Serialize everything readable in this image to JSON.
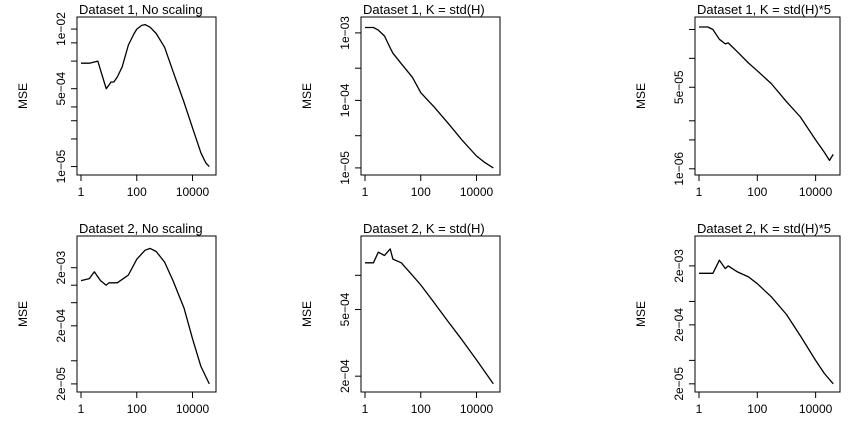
{
  "chart_data": [
    {
      "type": "line",
      "title": "Dataset 1,  No scaling",
      "ylabel": "MSE",
      "x_scale": "log",
      "y_scale": "log",
      "xlim": [
        1,
        50000
      ],
      "ylim": [
        8e-06,
        0.015
      ],
      "x_ticks": [
        {
          "v": 1,
          "label": "1"
        },
        {
          "v": 100,
          "label": "100"
        },
        {
          "v": 10000,
          "label": "10000"
        }
      ],
      "y_ticks": [
        {
          "v": 1e-05,
          "label": "1e−05"
        },
        {
          "v": 0.0005,
          "label": "5e−04"
        },
        {
          "v": 0.01,
          "label": "1e−02"
        }
      ],
      "y_minor_ticks": [
        4e-05,
        0.0001,
        0.0002,
        0.002,
        0.005
      ],
      "series": [
        {
          "x": [
            1,
            2,
            4,
            8,
            10,
            12,
            15,
            20,
            30,
            50,
            80,
            100,
            150,
            200,
            300,
            500,
            1000,
            2000,
            5000,
            10000,
            20000,
            30000,
            40000
          ],
          "y": [
            0.0018,
            0.0018,
            0.002,
            0.0005,
            0.0006,
            0.0007,
            0.0007,
            0.0009,
            0.0015,
            0.0045,
            0.008,
            0.01,
            0.012,
            0.0125,
            0.011,
            0.008,
            0.004,
            0.0012,
            0.00025,
            7e-05,
            2e-05,
            1.2e-05,
            1e-05
          ]
        }
      ]
    },
    {
      "type": "line",
      "title": "Dataset 1,  K = std(H)",
      "ylabel": "MSE",
      "x_scale": "log",
      "y_scale": "log",
      "xlim": [
        1,
        50000
      ],
      "ylim": [
        9e-06,
        0.0015
      ],
      "x_ticks": [
        {
          "v": 1,
          "label": "1"
        },
        {
          "v": 100,
          "label": "100"
        },
        {
          "v": 10000,
          "label": "10000"
        }
      ],
      "y_ticks": [
        {
          "v": 1e-05,
          "label": "1e−05"
        },
        {
          "v": 0.0001,
          "label": "1e−04"
        },
        {
          "v": 0.001,
          "label": "1e−03"
        }
      ],
      "y_minor_ticks": [
        3e-05,
        0.0003
      ],
      "series": [
        {
          "x": [
            1,
            2,
            3,
            5,
            8,
            10,
            20,
            50,
            100,
            300,
            1000,
            3000,
            10000,
            20000,
            40000
          ],
          "y": [
            0.0012,
            0.0012,
            0.0011,
            0.0009,
            0.0006,
            0.0005,
            0.00035,
            0.00022,
            0.00013,
            8e-05,
            4.5e-05,
            2.6e-05,
            1.5e-05,
            1.2e-05,
            1e-05
          ]
        }
      ]
    },
    {
      "type": "line",
      "title": "Dataset 1,  K = std(H)*5",
      "ylabel": "MSE",
      "x_scale": "log",
      "y_scale": "log",
      "xlim": [
        1,
        50000
      ],
      "ylim": [
        9e-07,
        0.0012
      ],
      "x_ticks": [
        {
          "v": 1,
          "label": "1"
        },
        {
          "v": 100,
          "label": "100"
        },
        {
          "v": 10000,
          "label": "10000"
        }
      ],
      "y_ticks": [
        {
          "v": 1e-06,
          "label": "1e−06"
        },
        {
          "v": 5e-05,
          "label": "5e−05"
        }
      ],
      "y_minor_ticks": [
        4e-06,
        1e-05,
        0.0002,
        0.0008
      ],
      "series": [
        {
          "x": [
            1,
            2,
            3,
            5,
            8,
            10,
            20,
            50,
            100,
            300,
            1000,
            3000,
            10000,
            20000,
            30000,
            40000
          ],
          "y": [
            0.0009,
            0.0009,
            0.0008,
            0.0005,
            0.0004,
            0.00042,
            0.00028,
            0.00016,
            0.00011,
            6e-05,
            2.5e-05,
            1.2e-05,
            4e-06,
            2.2e-06,
            1.5e-06,
            2e-06
          ]
        }
      ]
    },
    {
      "type": "line",
      "title": "Dataset 2,  No scaling",
      "ylabel": "MSE",
      "x_scale": "log",
      "y_scale": "log",
      "xlim": [
        1,
        50000
      ],
      "ylim": [
        1.7e-05,
        0.006
      ],
      "x_ticks": [
        {
          "v": 1,
          "label": "1"
        },
        {
          "v": 100,
          "label": "100"
        },
        {
          "v": 10000,
          "label": "10000"
        }
      ],
      "y_ticks": [
        {
          "v": 2e-05,
          "label": "2e−05"
        },
        {
          "v": 0.0002,
          "label": "2e−04"
        },
        {
          "v": 0.002,
          "label": "2e−03"
        }
      ],
      "y_minor_ticks": [
        5e-05,
        0.0005,
        0.001
      ],
      "series": [
        {
          "x": [
            1,
            2,
            3,
            5,
            8,
            10,
            20,
            50,
            100,
            200,
            300,
            500,
            1000,
            2000,
            5000,
            10000,
            20000,
            40000
          ],
          "y": [
            0.0012,
            0.0013,
            0.0017,
            0.0012,
            0.001,
            0.0011,
            0.0011,
            0.0015,
            0.0028,
            0.004,
            0.0043,
            0.0038,
            0.0025,
            0.0012,
            0.0004,
            0.00012,
            4e-05,
            2e-05
          ]
        }
      ]
    },
    {
      "type": "line",
      "title": "Dataset 2,  K = std(H)",
      "ylabel": "MSE",
      "x_scale": "log",
      "y_scale": "log",
      "xlim": [
        1,
        50000
      ],
      "ylim": [
        0.00017,
        0.0013
      ],
      "x_ticks": [
        {
          "v": 1,
          "label": "1"
        },
        {
          "v": 100,
          "label": "100"
        },
        {
          "v": 10000,
          "label": "10000"
        }
      ],
      "y_ticks": [
        {
          "v": 0.0002,
          "label": "2e−04"
        },
        {
          "v": 0.0005,
          "label": "5e−04"
        }
      ],
      "y_minor_ticks": [
        0.0008
      ],
      "series": [
        {
          "x": [
            1,
            2,
            3,
            5,
            8,
            10,
            20,
            50,
            100,
            300,
            1000,
            3000,
            10000,
            40000
          ],
          "y": [
            0.00095,
            0.00095,
            0.0011,
            0.00105,
            0.00115,
            0.001,
            0.00095,
            0.0008,
            0.0007,
            0.00055,
            0.00042,
            0.00033,
            0.00025,
            0.00018
          ]
        }
      ]
    },
    {
      "type": "line",
      "title": "Dataset 2,  K = std(H)*5",
      "ylabel": "MSE",
      "x_scale": "log",
      "y_scale": "log",
      "xlim": [
        1,
        50000
      ],
      "ylim": [
        1.7e-05,
        0.0055
      ],
      "x_ticks": [
        {
          "v": 1,
          "label": "1"
        },
        {
          "v": 100,
          "label": "100"
        },
        {
          "v": 10000,
          "label": "10000"
        }
      ],
      "y_ticks": [
        {
          "v": 2e-05,
          "label": "2e−05"
        },
        {
          "v": 0.0002,
          "label": "2e−04"
        },
        {
          "v": 0.002,
          "label": "2e−03"
        }
      ],
      "y_minor_ticks": [
        5e-05,
        0.0005
      ],
      "series": [
        {
          "x": [
            1,
            2,
            3,
            5,
            8,
            10,
            20,
            50,
            100,
            300,
            1000,
            3000,
            10000,
            20000,
            40000
          ],
          "y": [
            0.0015,
            0.0015,
            0.0015,
            0.0025,
            0.0018,
            0.002,
            0.0016,
            0.0013,
            0.001,
            0.0006,
            0.0003,
            0.00013,
            5e-05,
            3e-05,
            2e-05
          ]
        }
      ]
    }
  ]
}
